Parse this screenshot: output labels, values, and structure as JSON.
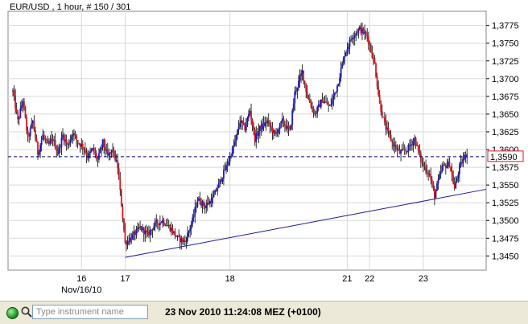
{
  "chart_data": {
    "type": "candlestick",
    "title": "EUR/USD , 1 hour, # 150 / 301",
    "ylim": [
      1.343,
      1.3795
    ],
    "y_ticks": [
      "1,3450",
      "1,3475",
      "1,3500",
      "1,3525",
      "1,3550",
      "1,3575",
      "1,3600",
      "1,3625",
      "1,3650",
      "1,3675",
      "1,3700",
      "1,3725",
      "1,3750",
      "1,3775"
    ],
    "y_tick_values": [
      1.345,
      1.3475,
      1.35,
      1.3525,
      1.355,
      1.3575,
      1.36,
      1.3625,
      1.365,
      1.3675,
      1.37,
      1.3725,
      1.375,
      1.3775
    ],
    "x_ticks": [
      {
        "label": "16",
        "bar": 55
      },
      {
        "label": "17",
        "bar": 90
      },
      {
        "label": "18",
        "bar": 174
      },
      {
        "label": "21",
        "bar": 268
      },
      {
        "label": "22",
        "bar": 286
      },
      {
        "label": "23",
        "bar": 329
      }
    ],
    "x_sublabel": {
      "label": "Nov/16/10",
      "bar": 55
    },
    "current_price": {
      "label": "1,3590",
      "value": 1.359
    },
    "trendline": {
      "from": {
        "bar": 90,
        "value": 1.3448
      },
      "to": {
        "bar": 400,
        "value": 1.3544
      }
    },
    "grid": true,
    "colors": {
      "up": "#1a1acc",
      "down": "#e0141e",
      "trendline": "#1a1aa0",
      "price_line": "#000080",
      "grid": "#d8d8d8"
    },
    "bar_count": 377,
    "keypoints": [
      [
        0,
        1.3682
      ],
      [
        4,
        1.364
      ],
      [
        8,
        1.367
      ],
      [
        12,
        1.3615
      ],
      [
        16,
        1.364
      ],
      [
        20,
        1.3595
      ],
      [
        24,
        1.362
      ],
      [
        28,
        1.3605
      ],
      [
        32,
        1.3615
      ],
      [
        36,
        1.3595
      ],
      [
        40,
        1.362
      ],
      [
        44,
        1.3605
      ],
      [
        48,
        1.3625
      ],
      [
        52,
        1.361
      ],
      [
        56,
        1.3605
      ],
      [
        60,
        1.359
      ],
      [
        64,
        1.36
      ],
      [
        68,
        1.3585
      ],
      [
        72,
        1.361
      ],
      [
        76,
        1.359
      ],
      [
        80,
        1.36
      ],
      [
        84,
        1.3575
      ],
      [
        86,
        1.354
      ],
      [
        88,
        1.3505
      ],
      [
        90,
        1.3468
      ],
      [
        96,
        1.3478
      ],
      [
        102,
        1.349
      ],
      [
        108,
        1.348
      ],
      [
        114,
        1.3495
      ],
      [
        120,
        1.35
      ],
      [
        126,
        1.349
      ],
      [
        132,
        1.3475
      ],
      [
        138,
        1.347
      ],
      [
        144,
        1.35
      ],
      [
        148,
        1.353
      ],
      [
        154,
        1.352
      ],
      [
        160,
        1.353
      ],
      [
        166,
        1.3555
      ],
      [
        172,
        1.358
      ],
      [
        178,
        1.361
      ],
      [
        182,
        1.364
      ],
      [
        186,
        1.363
      ],
      [
        190,
        1.3655
      ],
      [
        194,
        1.3615
      ],
      [
        198,
        1.363
      ],
      [
        204,
        1.364
      ],
      [
        210,
        1.362
      ],
      [
        216,
        1.364
      ],
      [
        222,
        1.3625
      ],
      [
        226,
        1.368
      ],
      [
        232,
        1.371
      ],
      [
        236,
        1.3675
      ],
      [
        242,
        1.365
      ],
      [
        248,
        1.367
      ],
      [
        254,
        1.366
      ],
      [
        260,
        1.369
      ],
      [
        266,
        1.3735
      ],
      [
        272,
        1.376
      ],
      [
        278,
        1.377
      ],
      [
        284,
        1.376
      ],
      [
        290,
        1.372
      ],
      [
        294,
        1.3665
      ],
      [
        298,
        1.3635
      ],
      [
        304,
        1.361
      ],
      [
        310,
        1.3595
      ],
      [
        316,
        1.36
      ],
      [
        322,
        1.3615
      ],
      [
        328,
        1.358
      ],
      [
        334,
        1.3565
      ],
      [
        338,
        1.3535
      ],
      [
        344,
        1.3575
      ],
      [
        350,
        1.358
      ],
      [
        354,
        1.3545
      ],
      [
        358,
        1.3575
      ],
      [
        362,
        1.359
      ],
      [
        364,
        1.3595
      ]
    ]
  },
  "status": {
    "instrument_placeholder": "Type instrument name",
    "datetime": "23 Nov 2010 11:24:08  MEZ (+0100)"
  }
}
